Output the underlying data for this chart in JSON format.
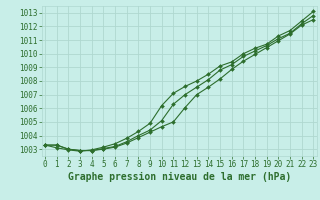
{
  "title": "Graphe pression niveau de la mer (hPa)",
  "bg_color": "#c8eee8",
  "grid_color": "#afd8d0",
  "line_color": "#2d6e2d",
  "x_ticks": [
    0,
    1,
    2,
    3,
    4,
    5,
    6,
    7,
    8,
    9,
    10,
    11,
    12,
    13,
    14,
    15,
    16,
    17,
    18,
    19,
    20,
    21,
    22,
    23
  ],
  "y_ticks": [
    1003,
    1004,
    1005,
    1006,
    1007,
    1008,
    1009,
    1010,
    1011,
    1012,
    1013
  ],
  "ylim": [
    1002.5,
    1013.5
  ],
  "xlim": [
    -0.3,
    23.3
  ],
  "y_a": [
    1003.3,
    1003.3,
    1003.0,
    1002.9,
    1002.9,
    1003.0,
    1003.15,
    1003.45,
    1003.85,
    1004.25,
    1004.65,
    1005.0,
    1006.05,
    1007.0,
    1007.55,
    1008.15,
    1008.85,
    1009.45,
    1009.95,
    1010.45,
    1010.95,
    1011.45,
    1012.1,
    1012.5
  ],
  "y_b": [
    1003.3,
    1003.3,
    1003.0,
    1002.9,
    1002.9,
    1003.05,
    1003.2,
    1003.55,
    1004.0,
    1004.4,
    1005.1,
    1006.3,
    1007.0,
    1007.55,
    1008.1,
    1008.8,
    1009.2,
    1009.8,
    1010.2,
    1010.6,
    1011.1,
    1011.5,
    1012.2,
    1012.8
  ],
  "y_c": [
    1003.3,
    1003.1,
    1002.95,
    1002.85,
    1002.95,
    1003.15,
    1003.4,
    1003.8,
    1004.3,
    1004.9,
    1006.2,
    1007.1,
    1007.6,
    1008.0,
    1008.5,
    1009.1,
    1009.4,
    1010.0,
    1010.4,
    1010.7,
    1011.3,
    1011.7,
    1012.4,
    1013.1
  ],
  "title_fontsize": 7,
  "tick_fontsize": 5.5,
  "markersize": 2.0,
  "linewidth": 0.8
}
